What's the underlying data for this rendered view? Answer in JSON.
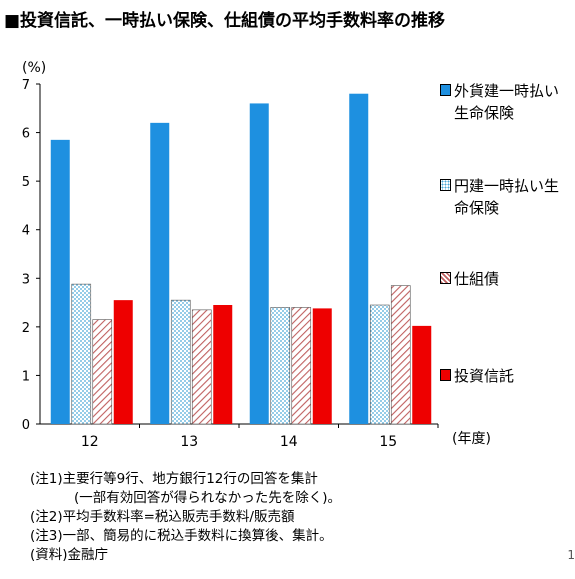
{
  "title": "■投資信託、一時払い保険、仕組債の平均手数料率の推移",
  "chart_data": {
    "type": "bar",
    "ylabel": "(%)",
    "xlabel": "(年度)",
    "ylim": [
      0,
      7
    ],
    "yticks": [
      "0",
      "1",
      "2",
      "3",
      "4",
      "5",
      "6",
      "7"
    ],
    "categories": [
      "12",
      "13",
      "14",
      "15"
    ],
    "series": [
      {
        "name": "外貨建一時払い生命保険",
        "values": [
          5.85,
          6.2,
          6.6,
          6.8
        ],
        "color": "#1e90e0",
        "pattern": "solid"
      },
      {
        "name": "円建一時払い生命保険",
        "values": [
          2.88,
          2.55,
          2.4,
          2.45
        ],
        "color": "#bfe4f5",
        "pattern": "dots"
      },
      {
        "name": "仕組債",
        "values": [
          2.15,
          2.35,
          2.4,
          2.85
        ],
        "color": "#e0a0a0",
        "pattern": "hatch"
      },
      {
        "name": "投資信託",
        "values": [
          2.55,
          2.45,
          2.38,
          2.02
        ],
        "color": "#ee0000",
        "pattern": "solid"
      }
    ],
    "grid": false,
    "legend": "right"
  },
  "notes": [
    "(注1)主要行等9行、地方銀行12行の回答を集計",
    "(一部有効回答が得られなかった先を除く)。",
    "(注2)平均手数料率=税込販売手数料/販売額",
    "(注3)一部、簡易的に税込手数料に換算後、集計。",
    "(資料)金融庁"
  ],
  "page_number": "1"
}
